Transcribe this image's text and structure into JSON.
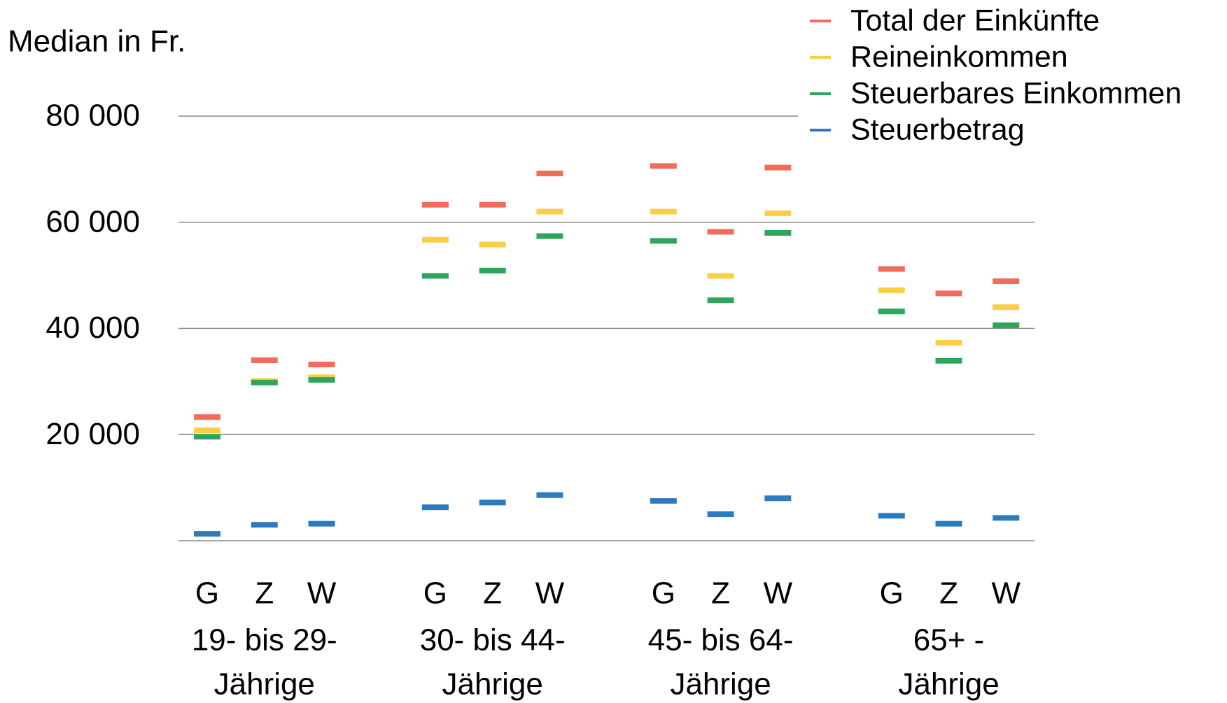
{
  "chart_data": {
    "type": "dash",
    "y_label": "Median in Fr.",
    "categories": [
      "G",
      "Z",
      "W",
      "G",
      "Z",
      "W",
      "G",
      "Z",
      "W",
      "G",
      "Z",
      "W"
    ],
    "groups": [
      [
        "19- bis 29-",
        "Jährige"
      ],
      [
        "30- bis 44-",
        "Jährige"
      ],
      [
        "45- bis 64-",
        "Jährige"
      ],
      [
        "65+ -",
        "Jährige"
      ]
    ],
    "series": [
      {
        "name": "Total der Einkünfte",
        "color": "#f26b5b",
        "values": [
          23300,
          34000,
          33200,
          63300,
          63300,
          69200,
          70600,
          58200,
          70300,
          51200,
          46600,
          48900
        ]
      },
      {
        "name": "Reineinkommen",
        "color": "#fbcf45",
        "values": [
          20800,
          30100,
          30800,
          56700,
          55800,
          62000,
          62000,
          49900,
          61700,
          47200,
          37300,
          44000
        ]
      },
      {
        "name": "Steuerbares Einkommen",
        "color": "#2ea55c",
        "values": [
          19600,
          29800,
          30300,
          49900,
          50900,
          57400,
          56500,
          45300,
          58000,
          43200,
          33900,
          40600
        ]
      },
      {
        "name": "Steuerbetrag",
        "color": "#2d7bbf",
        "values": [
          1300,
          3000,
          3200,
          6300,
          7200,
          8600,
          7500,
          5000,
          8000,
          4700,
          3200,
          4300
        ]
      }
    ],
    "ylim": [
      0,
      80000
    ],
    "yticks": [
      {
        "value": 20000,
        "label": "20 000"
      },
      {
        "value": 40000,
        "label": "40 000"
      },
      {
        "value": 60000,
        "label": "60 000"
      },
      {
        "value": 80000,
        "label": "80 000"
      }
    ],
    "grid": true,
    "legend": "top-right"
  }
}
